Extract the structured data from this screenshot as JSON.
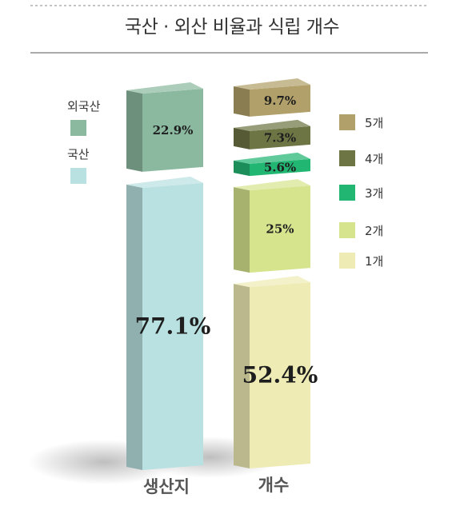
{
  "title": "국산 · 외산 비율과 식립 개수",
  "chart_data": [
    {
      "type": "bar",
      "category": "생산지",
      "legend_position": "left",
      "series": [
        {
          "name": "국산",
          "value": 77.1,
          "label": "77.1%",
          "color": "#b9e1e2"
        },
        {
          "name": "외국산",
          "value": 22.9,
          "label": "22.9%",
          "color": "#8ab99f"
        }
      ]
    },
    {
      "type": "bar",
      "category": "개수",
      "legend_position": "right",
      "series": [
        {
          "name": "1개",
          "value": 52.4,
          "label": "52.4%",
          "color": "#eeecb4"
        },
        {
          "name": "2개",
          "value": 25,
          "label": "25%",
          "color": "#d6e48e"
        },
        {
          "name": "3개",
          "value": 5.6,
          "label": "5.6%",
          "color": "#22b673"
        },
        {
          "name": "4개",
          "value": 7.3,
          "label": "7.3%",
          "color": "#6e7545"
        },
        {
          "name": "5개",
          "value": 9.7,
          "label": "9.7%",
          "color": "#b1a069"
        }
      ]
    }
  ]
}
